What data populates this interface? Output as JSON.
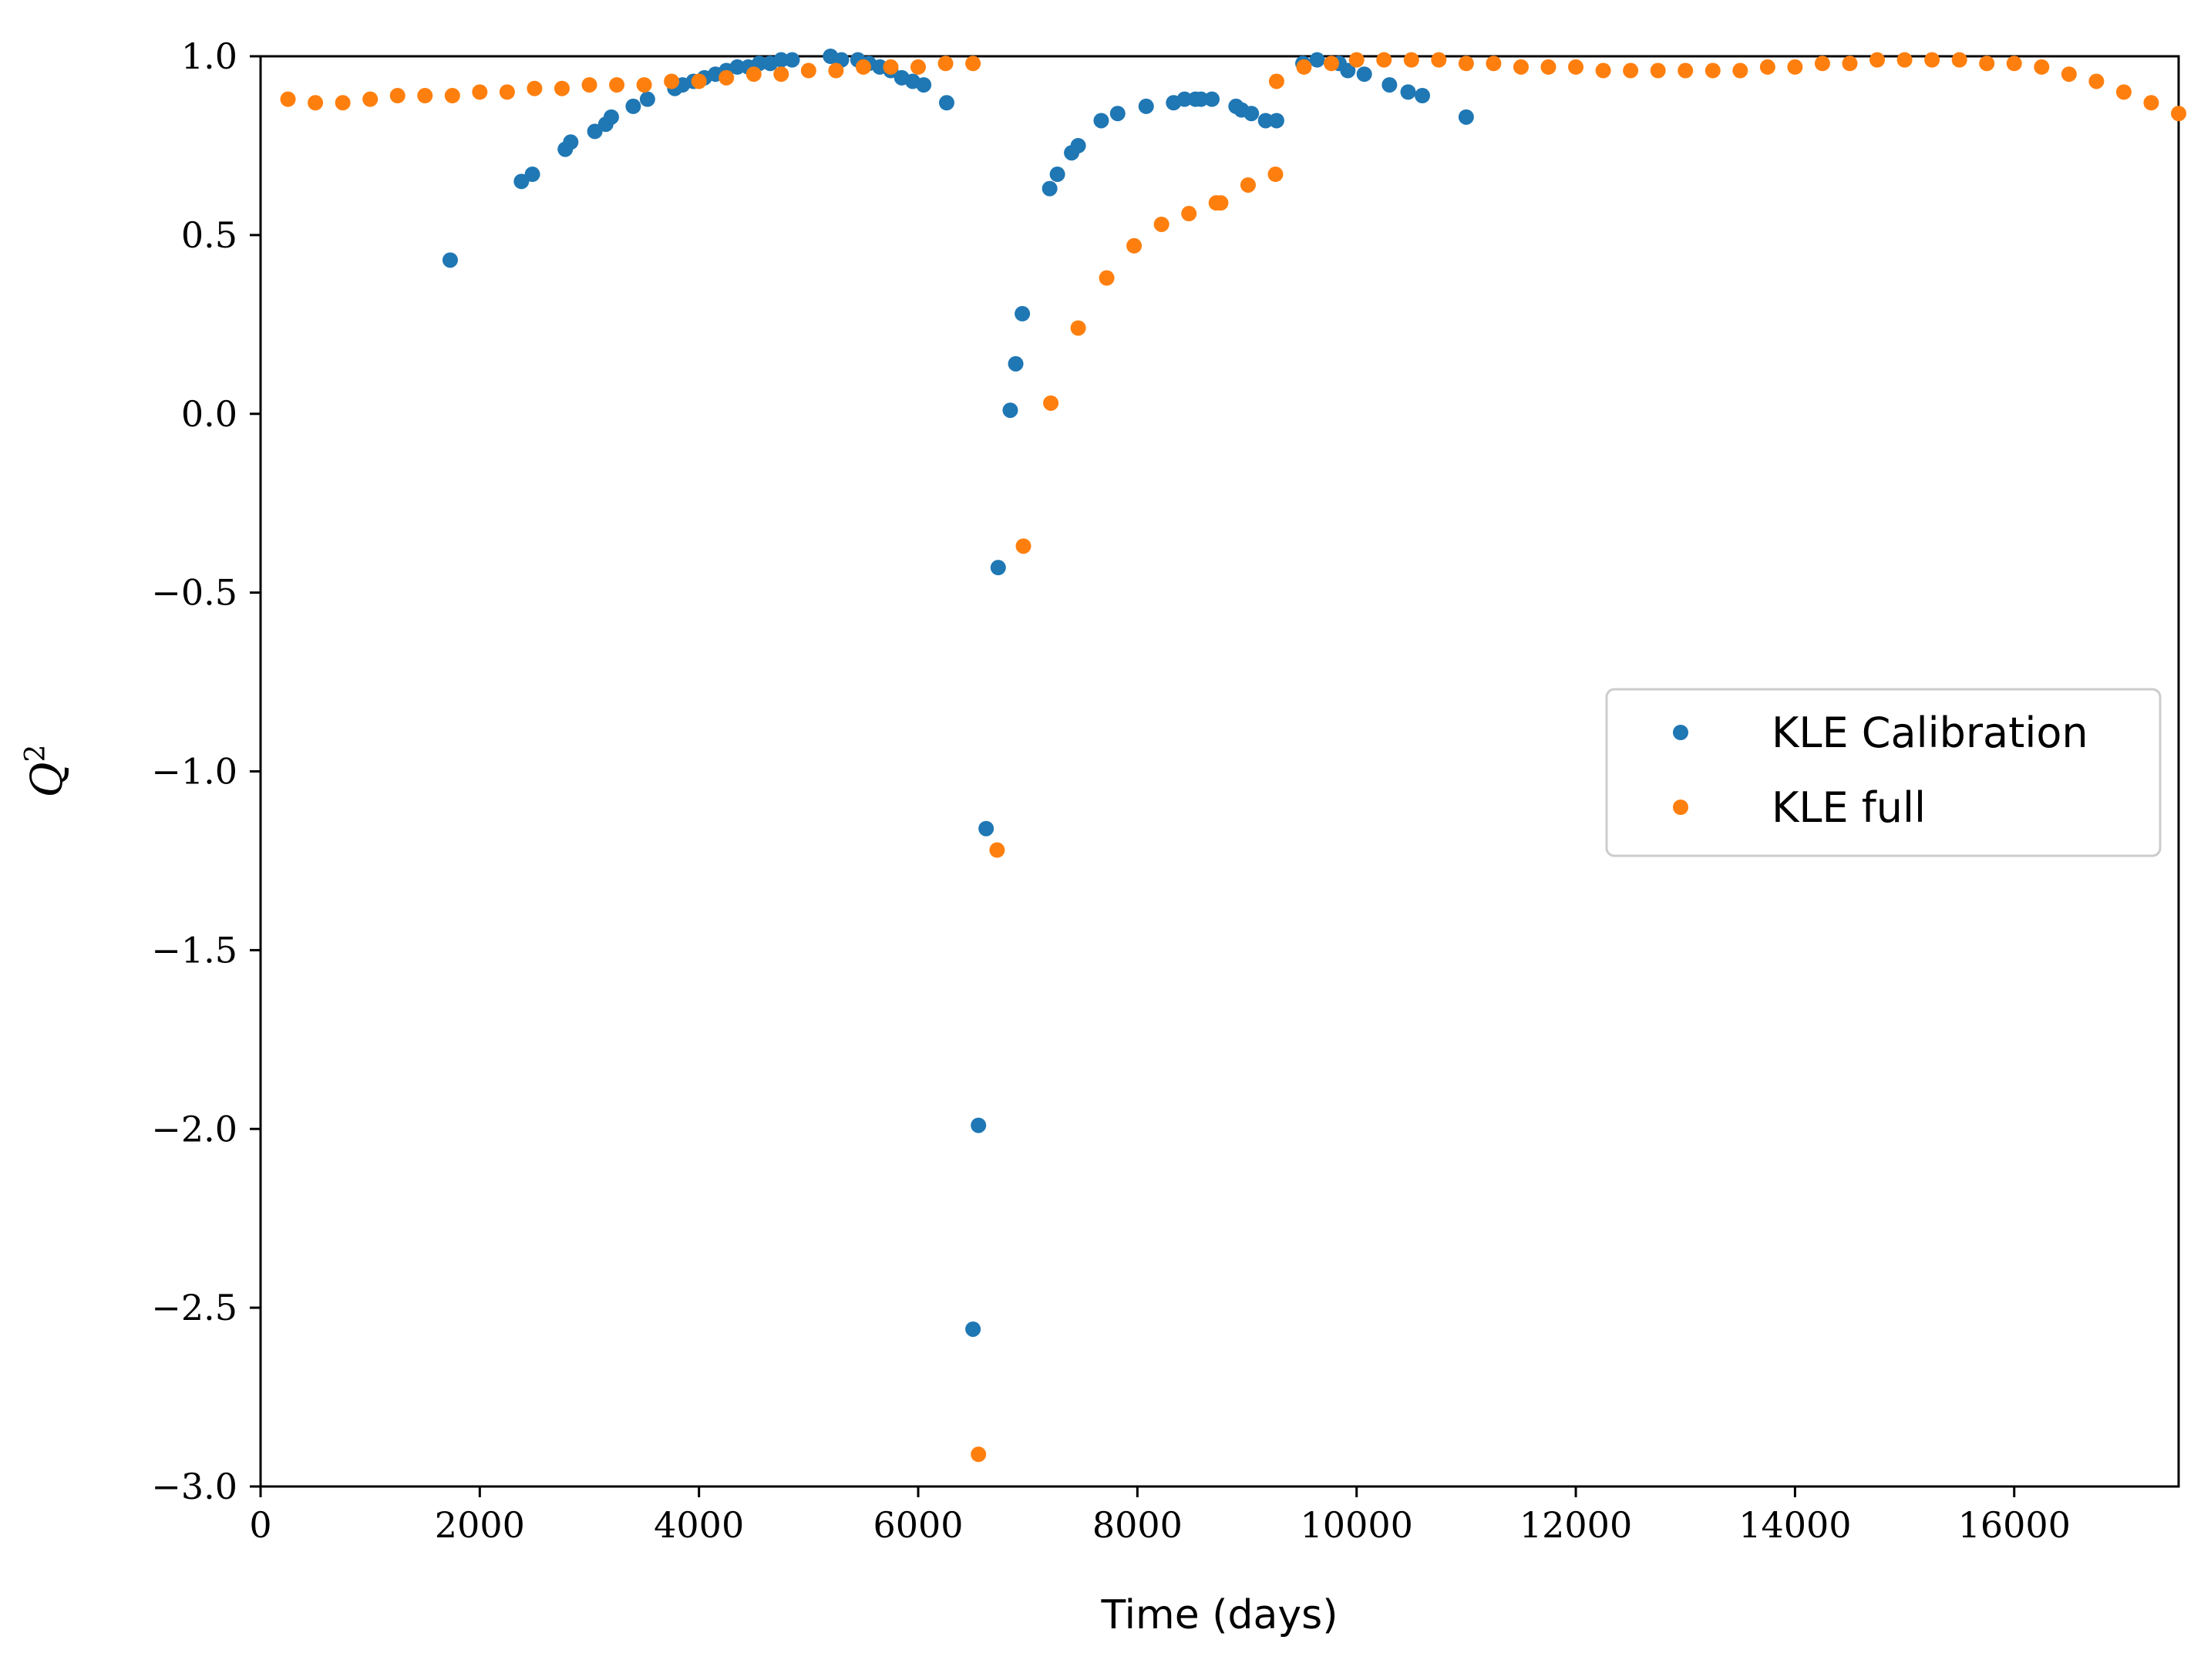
{
  "chart_data": {
    "type": "scatter",
    "xlabel": "Time (days)",
    "ylabel": "Q",
    "ylabel_sup": "2",
    "xlim": [
      0,
      17500
    ],
    "ylim": [
      -3.0,
      1.0
    ],
    "xticks": [
      0,
      2000,
      4000,
      6000,
      8000,
      10000,
      12000,
      14000,
      16000
    ],
    "xtick_labels": [
      "0",
      "2000",
      "4000",
      "6000",
      "8000",
      "10000",
      "12000",
      "14000",
      "16000"
    ],
    "yticks": [
      1.0,
      0.5,
      0.0,
      -0.5,
      -1.0,
      -1.5,
      -2.0,
      -2.5,
      -3.0
    ],
    "ytick_labels": [
      "1.0",
      "0.5",
      "0.0",
      "−0.5",
      "−1.0",
      "−1.5",
      "−2.0",
      "−2.5",
      "−3.0"
    ],
    "grid": false,
    "legend_position": "center-right",
    "series": [
      {
        "name": "KLE Calibration",
        "color": "#1f77b4",
        "points": [
          [
            1730,
            0.43
          ],
          [
            2380,
            0.65
          ],
          [
            2480,
            0.67
          ],
          [
            2780,
            0.74
          ],
          [
            2830,
            0.76
          ],
          [
            3050,
            0.79
          ],
          [
            3150,
            0.81
          ],
          [
            3200,
            0.83
          ],
          [
            3400,
            0.86
          ],
          [
            3530,
            0.88
          ],
          [
            3780,
            0.91
          ],
          [
            3850,
            0.92
          ],
          [
            3950,
            0.93
          ],
          [
            4050,
            0.94
          ],
          [
            4150,
            0.95
          ],
          [
            4250,
            0.96
          ],
          [
            4350,
            0.97
          ],
          [
            4450,
            0.97
          ],
          [
            4550,
            0.98
          ],
          [
            4650,
            0.98
          ],
          [
            4750,
            0.99
          ],
          [
            4850,
            0.99
          ],
          [
            5200,
            1.0
          ],
          [
            5300,
            0.99
          ],
          [
            5450,
            0.99
          ],
          [
            5550,
            0.98
          ],
          [
            5650,
            0.97
          ],
          [
            5750,
            0.96
          ],
          [
            5850,
            0.94
          ],
          [
            5950,
            0.93
          ],
          [
            6050,
            0.92
          ],
          [
            6260,
            0.87
          ],
          [
            6500,
            -2.56
          ],
          [
            6550,
            -1.99
          ],
          [
            6620,
            -1.16
          ],
          [
            6730,
            -0.43
          ],
          [
            6840,
            0.01
          ],
          [
            6890,
            0.14
          ],
          [
            6950,
            0.28
          ],
          [
            7200,
            0.63
          ],
          [
            7270,
            0.67
          ],
          [
            7400,
            0.73
          ],
          [
            7460,
            0.75
          ],
          [
            7670,
            0.82
          ],
          [
            7820,
            0.84
          ],
          [
            8080,
            0.86
          ],
          [
            8330,
            0.87
          ],
          [
            8430,
            0.88
          ],
          [
            8530,
            0.88
          ],
          [
            8580,
            0.88
          ],
          [
            8680,
            0.88
          ],
          [
            8900,
            0.86
          ],
          [
            8950,
            0.85
          ],
          [
            9040,
            0.84
          ],
          [
            9170,
            0.82
          ],
          [
            9270,
            0.82
          ],
          [
            9510,
            0.98
          ],
          [
            9640,
            0.99
          ],
          [
            9840,
            0.98
          ],
          [
            9920,
            0.96
          ],
          [
            10070,
            0.95
          ],
          [
            10300,
            0.92
          ],
          [
            10470,
            0.9
          ],
          [
            10600,
            0.89
          ],
          [
            11000,
            0.83
          ]
        ]
      },
      {
        "name": "KLE full",
        "color": "#ff7f0e",
        "points": [
          [
            250,
            0.88
          ],
          [
            500,
            0.87
          ],
          [
            750,
            0.87
          ],
          [
            1000,
            0.88
          ],
          [
            1250,
            0.89
          ],
          [
            1500,
            0.89
          ],
          [
            1750,
            0.89
          ],
          [
            2000,
            0.9
          ],
          [
            2250,
            0.9
          ],
          [
            2500,
            0.91
          ],
          [
            2750,
            0.91
          ],
          [
            3000,
            0.92
          ],
          [
            3250,
            0.92
          ],
          [
            3500,
            0.92
          ],
          [
            3750,
            0.93
          ],
          [
            4000,
            0.93
          ],
          [
            4250,
            0.94
          ],
          [
            4500,
            0.95
          ],
          [
            4750,
            0.95
          ],
          [
            5000,
            0.96
          ],
          [
            5250,
            0.96
          ],
          [
            5500,
            0.97
          ],
          [
            5750,
            0.97
          ],
          [
            6000,
            0.97
          ],
          [
            6250,
            0.98
          ],
          [
            6500,
            0.98
          ],
          [
            6550,
            -2.91
          ],
          [
            6720,
            -1.22
          ],
          [
            6960,
            -0.37
          ],
          [
            7210,
            0.03
          ],
          [
            7460,
            0.24
          ],
          [
            7720,
            0.38
          ],
          [
            7970,
            0.47
          ],
          [
            8220,
            0.53
          ],
          [
            8470,
            0.56
          ],
          [
            8720,
            0.59
          ],
          [
            8760,
            0.59
          ],
          [
            9010,
            0.64
          ],
          [
            9260,
            0.67
          ],
          [
            9270,
            0.93
          ],
          [
            9520,
            0.97
          ],
          [
            9770,
            0.98
          ],
          [
            10000,
            0.99
          ],
          [
            10250,
            0.99
          ],
          [
            10500,
            0.99
          ],
          [
            10750,
            0.99
          ],
          [
            11000,
            0.98
          ],
          [
            11250,
            0.98
          ],
          [
            11500,
            0.97
          ],
          [
            11750,
            0.97
          ],
          [
            12000,
            0.97
          ],
          [
            12250,
            0.96
          ],
          [
            12500,
            0.96
          ],
          [
            12750,
            0.96
          ],
          [
            13000,
            0.96
          ],
          [
            13250,
            0.96
          ],
          [
            13500,
            0.96
          ],
          [
            13750,
            0.97
          ],
          [
            14000,
            0.97
          ],
          [
            14250,
            0.98
          ],
          [
            14500,
            0.98
          ],
          [
            14750,
            0.99
          ],
          [
            15000,
            0.99
          ],
          [
            15250,
            0.99
          ],
          [
            15500,
            0.99
          ],
          [
            15750,
            0.98
          ],
          [
            16000,
            0.98
          ],
          [
            16250,
            0.97
          ],
          [
            16500,
            0.95
          ],
          [
            16750,
            0.93
          ],
          [
            17000,
            0.9
          ],
          [
            17250,
            0.87
          ],
          [
            17500,
            0.84
          ]
        ]
      }
    ]
  }
}
